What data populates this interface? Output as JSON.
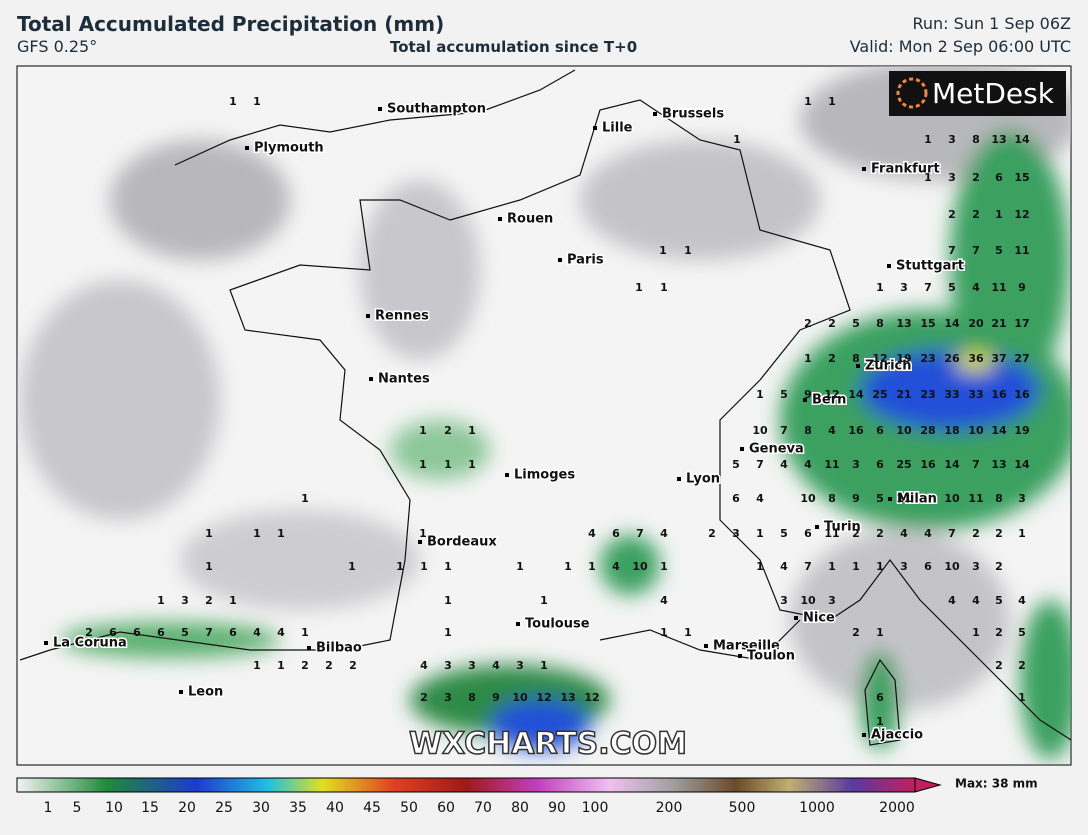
{
  "header": {
    "title": "Total Accumulated Precipitation (mm)",
    "model": "GFS 0.25°",
    "subtitle": "Total accumulation since T+0",
    "run": "Run: Sun 1 Sep 06Z",
    "valid": "Valid: Mon 2 Sep 06:00 UTC"
  },
  "logo": "MetDesk",
  "watermark": "WXCHARTS.COM",
  "cities": [
    "Southampton",
    "Brussels",
    "Lille",
    "Plymouth",
    "Frankfurt",
    "Rouen",
    "Paris",
    "Stuttgart",
    "Rennes",
    "Zurich",
    "Nantes",
    "Bern",
    "Geneva",
    "Limoges",
    "Lyon",
    "Milan",
    "Turin",
    "Bordeaux",
    "Toulouse",
    "Nice",
    "La Coruna",
    "Marseille",
    "Bilbao",
    "Toulon",
    "Leon",
    "Ajaccio"
  ],
  "grid_values": [
    [
      1,
      1,
      1,
      1
    ],
    [
      1,
      1,
      3,
      8,
      13,
      14
    ],
    [
      1,
      3,
      2,
      6,
      15
    ],
    [
      2,
      2,
      1,
      12
    ],
    [
      1,
      1,
      7,
      7,
      5,
      11
    ],
    [
      1,
      1,
      1,
      3,
      7,
      5,
      4,
      11,
      9
    ],
    [
      2,
      2,
      5,
      8,
      13,
      15,
      14,
      20,
      21,
      17
    ],
    [
      1,
      2,
      8,
      12,
      19,
      23,
      26,
      36,
      37,
      27
    ],
    [
      1,
      5,
      9,
      12,
      14,
      25,
      21,
      23,
      33,
      33,
      16,
      16
    ],
    [
      1,
      2,
      1,
      10,
      7,
      8,
      4,
      16,
      6,
      10,
      28,
      18,
      10,
      14,
      19
    ],
    [
      1,
      1,
      1,
      5,
      7,
      4,
      4,
      11,
      3,
      6,
      25,
      16,
      14,
      7,
      13,
      14
    ],
    [
      1,
      6,
      4,
      10,
      8,
      9,
      5,
      11,
      10,
      11,
      8,
      3
    ],
    [
      1,
      1,
      1,
      1,
      4,
      6,
      7,
      4,
      2,
      3,
      1,
      5,
      6,
      11,
      2,
      2,
      4,
      4,
      7,
      2,
      2,
      1
    ],
    [
      1,
      1,
      1,
      1,
      1,
      1,
      1,
      1,
      4,
      10,
      1,
      1,
      4,
      7,
      1,
      1,
      1,
      3,
      6,
      10,
      3,
      2
    ],
    [
      1,
      3,
      2,
      1,
      1,
      1,
      4,
      3,
      10,
      3,
      4,
      4,
      5,
      4
    ],
    [
      2,
      6,
      6,
      6,
      5,
      7,
      6,
      4,
      4,
      1,
      1,
      1,
      1,
      2,
      1,
      1,
      2,
      5
    ],
    [
      1,
      1,
      2,
      2,
      2,
      4,
      3,
      3,
      4,
      3,
      1,
      2,
      2
    ],
    [
      2,
      3,
      8,
      9,
      10,
      12,
      13,
      12,
      6,
      1
    ],
    [
      1
    ]
  ],
  "colorbar": {
    "ticks": [
      1,
      5,
      10,
      15,
      20,
      25,
      30,
      35,
      40,
      45,
      50,
      60,
      70,
      80,
      90,
      100,
      200,
      500,
      1000,
      2000
    ],
    "max_label": "Max: 38 mm"
  }
}
